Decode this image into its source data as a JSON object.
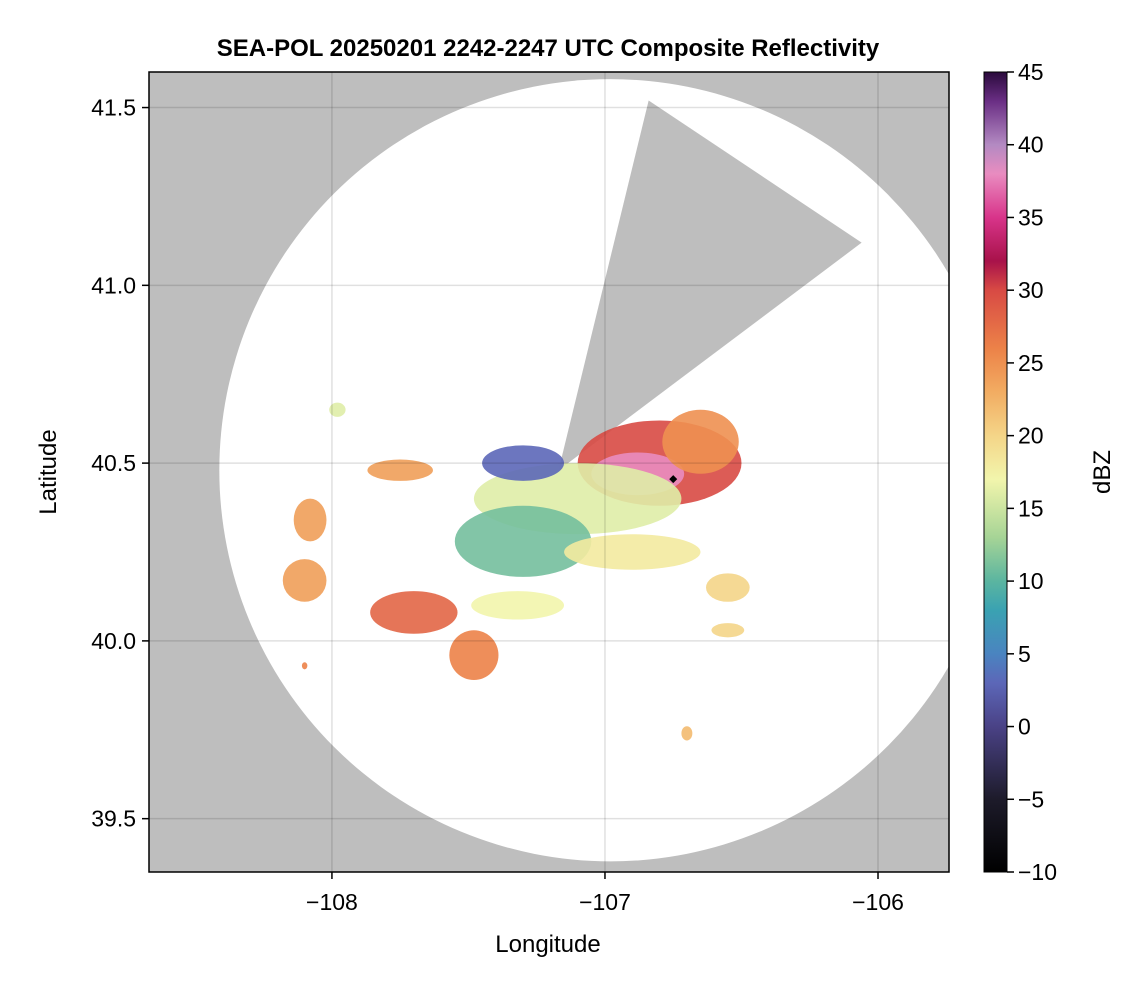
{
  "chart_data": {
    "type": "heatmap",
    "title": "SEA-POL 20250201 2242-2247 UTC Composite Reflectivity",
    "xlabel": "Longitude",
    "ylabel": "Latitude",
    "xlim": [
      -108.67,
      -105.74
    ],
    "ylim": [
      39.35,
      41.6
    ],
    "x_ticks": [
      {
        "value": -108,
        "label": "−108"
      },
      {
        "value": -107,
        "label": "−107"
      },
      {
        "value": -106,
        "label": "−106"
      }
    ],
    "y_ticks": [
      {
        "value": 39.5,
        "label": "39.5"
      },
      {
        "value": 40.0,
        "label": "40.0"
      },
      {
        "value": 40.5,
        "label": "40.5"
      },
      {
        "value": 41.0,
        "label": "41.0"
      },
      {
        "value": 41.5,
        "label": "41.5"
      }
    ],
    "grid": true,
    "no_coverage_color": "#bebebe",
    "coverage_color": "#ffffff",
    "radar_site": {
      "lon": -106.75,
      "lat": 40.455,
      "marker": "black-diamond"
    },
    "coverage": {
      "center": {
        "lon": -106.98,
        "lat": 40.48
      },
      "radius_deg_lat": 1.1,
      "blocked_sector": [
        {
          "lon": -107.17,
          "lat": 40.48
        },
        {
          "lon": -106.84,
          "lat": 41.52
        },
        {
          "lon": -106.06,
          "lat": 41.12
        },
        {
          "lon": -107.17,
          "lat": 40.48
        }
      ]
    },
    "echo_regions": [
      {
        "lon": -106.8,
        "lat": 40.5,
        "rlon": 0.3,
        "rlat": 0.12,
        "dbz": 30
      },
      {
        "lon": -106.88,
        "lat": 40.47,
        "rlon": 0.17,
        "rlat": 0.06,
        "dbz": 38
      },
      {
        "lon": -106.65,
        "lat": 40.56,
        "rlon": 0.14,
        "rlat": 0.09,
        "dbz": 25
      },
      {
        "lon": -107.1,
        "lat": 40.4,
        "rlon": 0.38,
        "rlat": 0.1,
        "dbz": 16
      },
      {
        "lon": -107.3,
        "lat": 40.28,
        "rlon": 0.25,
        "rlat": 0.1,
        "dbz": 11
      },
      {
        "lon": -107.3,
        "lat": 40.5,
        "rlon": 0.15,
        "rlat": 0.05,
        "dbz": 3
      },
      {
        "lon": -107.75,
        "lat": 40.48,
        "rlon": 0.12,
        "rlat": 0.03,
        "dbz": 24
      },
      {
        "lon": -106.9,
        "lat": 40.25,
        "rlon": 0.25,
        "rlat": 0.05,
        "dbz": 18
      },
      {
        "lon": -107.7,
        "lat": 40.08,
        "rlon": 0.16,
        "rlat": 0.06,
        "dbz": 28
      },
      {
        "lon": -107.48,
        "lat": 39.96,
        "rlon": 0.09,
        "rlat": 0.07,
        "dbz": 26
      },
      {
        "lon": -107.32,
        "lat": 40.1,
        "rlon": 0.17,
        "rlat": 0.04,
        "dbz": 17
      },
      {
        "lon": -108.08,
        "lat": 40.34,
        "rlon": 0.06,
        "rlat": 0.06,
        "dbz": 24
      },
      {
        "lon": -108.1,
        "lat": 40.17,
        "rlon": 0.08,
        "rlat": 0.06,
        "dbz": 24
      },
      {
        "lon": -106.55,
        "lat": 40.15,
        "rlon": 0.08,
        "rlat": 0.04,
        "dbz": 20
      },
      {
        "lon": -106.55,
        "lat": 40.03,
        "rlon": 0.06,
        "rlat": 0.02,
        "dbz": 20
      },
      {
        "lon": -106.7,
        "lat": 39.74,
        "rlon": 0.02,
        "rlat": 0.02,
        "dbz": 22
      },
      {
        "lon": -107.98,
        "lat": 40.65,
        "rlon": 0.03,
        "rlat": 0.02,
        "dbz": 16
      },
      {
        "lon": -108.1,
        "lat": 39.93,
        "rlon": 0.01,
        "rlat": 0.01,
        "dbz": 26
      }
    ],
    "colorbar": {
      "label": "dBZ",
      "min": -10,
      "max": 45,
      "ticks": [
        {
          "value": -10,
          "label": "−10"
        },
        {
          "value": -5,
          "label": "−5"
        },
        {
          "value": 0,
          "label": "0"
        },
        {
          "value": 5,
          "label": "5"
        },
        {
          "value": 10,
          "label": "10"
        },
        {
          "value": 15,
          "label": "15"
        },
        {
          "value": 20,
          "label": "20"
        },
        {
          "value": 25,
          "label": "25"
        },
        {
          "value": 30,
          "label": "30"
        },
        {
          "value": 35,
          "label": "35"
        },
        {
          "value": 40,
          "label": "40"
        },
        {
          "value": 45,
          "label": "45"
        }
      ],
      "colors": [
        {
          "value": -10,
          "color": "#000000"
        },
        {
          "value": -5,
          "color": "#1d1b2a"
        },
        {
          "value": 0,
          "color": "#4a4286"
        },
        {
          "value": 3,
          "color": "#5c67b8"
        },
        {
          "value": 5,
          "color": "#4a84c0"
        },
        {
          "value": 8,
          "color": "#3aa2b2"
        },
        {
          "value": 10,
          "color": "#5bb5a0"
        },
        {
          "value": 13,
          "color": "#a6d496"
        },
        {
          "value": 17,
          "color": "#f2f5ac"
        },
        {
          "value": 20,
          "color": "#f4d588"
        },
        {
          "value": 23,
          "color": "#f2ac62"
        },
        {
          "value": 26,
          "color": "#ec8248"
        },
        {
          "value": 30,
          "color": "#d84a44"
        },
        {
          "value": 32,
          "color": "#a8124a"
        },
        {
          "value": 35,
          "color": "#d8348a"
        },
        {
          "value": 38,
          "color": "#e98cc0"
        },
        {
          "value": 40,
          "color": "#b38ac2"
        },
        {
          "value": 43,
          "color": "#6a2e84"
        },
        {
          "value": 45,
          "color": "#2a0a3c"
        }
      ]
    }
  }
}
